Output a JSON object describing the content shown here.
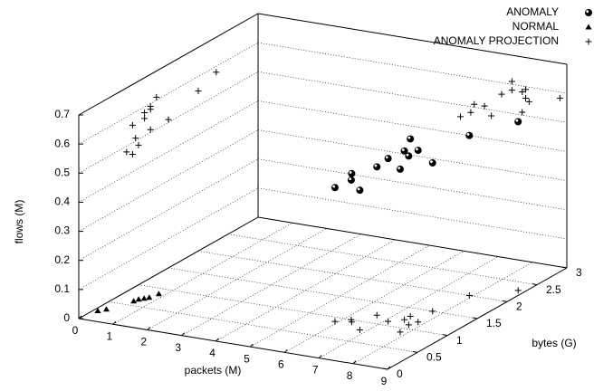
{
  "chart_data": {
    "type": "scatter3d",
    "xlabel": "packets (M)",
    "ylabel": "bytes (G)",
    "zlabel": "flows (M)",
    "xlim": [
      0,
      9
    ],
    "xticks": [
      0,
      1,
      2,
      3,
      4,
      5,
      6,
      7,
      8,
      9
    ],
    "ylim": [
      0,
      3
    ],
    "yticks": [
      0,
      0.5,
      1,
      1.5,
      2,
      2.5,
      3
    ],
    "zlim": [
      0,
      0.7
    ],
    "zticks": [
      0,
      0.1,
      0.2,
      0.3,
      0.4,
      0.5,
      0.6,
      0.7
    ],
    "grid": true,
    "legend": "top-right",
    "series": [
      {
        "name": "ANOMALY",
        "marker": "circle",
        "color": "#000000",
        "x": [
          5.9,
          6.2,
          6.3,
          6.8,
          6.6,
          7.1,
          7.8,
          7.4,
          7.7,
          7.4,
          7.8,
          7.7,
          7.9,
          8.8
        ],
        "y": [
          0.9,
          1.0,
          0.95,
          0.8,
          1.2,
          1.1,
          0.9,
          1.2,
          1.1,
          1.3,
          1.2,
          1.5,
          2.0,
          2.3
        ],
        "z": [
          0.46,
          0.48,
          0.51,
          0.48,
          0.51,
          0.56,
          0.56,
          0.58,
          0.58,
          0.61,
          0.59,
          0.51,
          0.55,
          0.58
        ]
      },
      {
        "name": "NORMAL",
        "marker": "triangle",
        "color": "#000000",
        "x": [
          0.24,
          0.37,
          0.66,
          0.7,
          0.79,
          0.87,
          0.94
        ],
        "y": [
          0.18,
          0.25,
          0.54,
          0.6,
          0.64,
          0.68,
          0.8
        ],
        "z": [
          0.01,
          0.01,
          0.01,
          0.01,
          0.01,
          0.01,
          0.01
        ]
      },
      {
        "name": "ANOMALY PROJECTION",
        "marker": "plus",
        "color": "#000000",
        "x": [
          5.9,
          6.2,
          6.3,
          6.8,
          6.6,
          7.1,
          7.8,
          7.4,
          7.7,
          7.4,
          7.8,
          7.7,
          7.9,
          8.8,
          0,
          0,
          0,
          0,
          0,
          0,
          0,
          0,
          0,
          0,
          0,
          0,
          0,
          0,
          5.9,
          6.2,
          6.3,
          6.8,
          6.6,
          7.1,
          7.8,
          7.4,
          7.7,
          7.4,
          7.8,
          7.7,
          7.9,
          8.8
        ],
        "y": [
          0.9,
          1.0,
          0.95,
          0.8,
          1.2,
          1.1,
          0.9,
          1.2,
          1.1,
          1.3,
          1.2,
          1.5,
          2.0,
          2.3,
          0.9,
          1.0,
          0.95,
          0.8,
          1.2,
          1.1,
          0.9,
          1.2,
          1.1,
          1.3,
          1.2,
          1.5,
          2.0,
          2.3,
          3,
          3,
          3,
          3,
          3,
          3,
          3,
          3,
          3,
          3,
          3,
          3,
          3,
          3
        ],
        "z": [
          0,
          0,
          0,
          0,
          0,
          0,
          0,
          0,
          0,
          0,
          0,
          0,
          0,
          0,
          0.46,
          0.48,
          0.51,
          0.48,
          0.51,
          0.56,
          0.56,
          0.58,
          0.58,
          0.61,
          0.59,
          0.51,
          0.55,
          0.58,
          0.46,
          0.48,
          0.51,
          0.48,
          0.51,
          0.56,
          0.56,
          0.58,
          0.58,
          0.61,
          0.59,
          0.51,
          0.55,
          0.58
        ]
      }
    ]
  }
}
